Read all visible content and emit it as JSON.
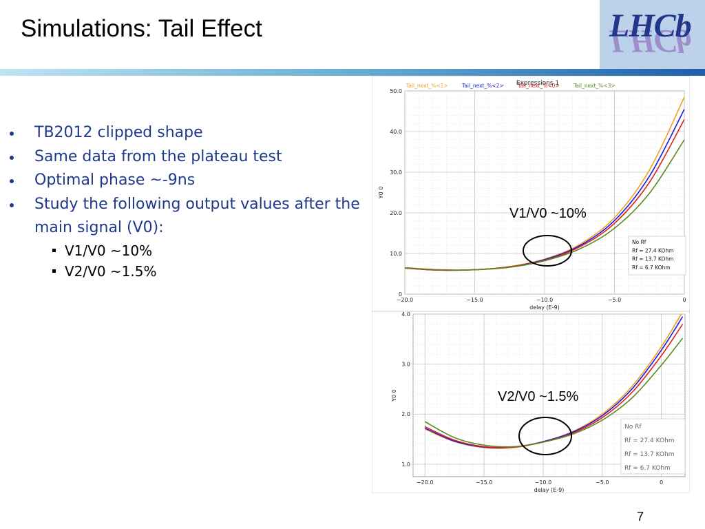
{
  "slide": {
    "title": "Simulations: Tail Effect",
    "logo_text": "LHCb",
    "page_number": "7"
  },
  "bullets": [
    {
      "text": "TB2012 clipped shape",
      "level": 1
    },
    {
      "text": "Same data from the plateau test",
      "level": 1
    },
    {
      "text": "Optimal phase ~-9ns",
      "level": 1
    },
    {
      "text": "Study the following output values after the main signal (V0):",
      "level": 1
    },
    {
      "text": "V1/V0 ~10%",
      "level": 2
    },
    {
      "text": "V2/V0 ~1.5%",
      "level": 2
    }
  ],
  "chart_data": [
    {
      "type": "line",
      "title": "Expressions 1",
      "xlabel": "delay (E-9)",
      "ylabel": "Y0 0",
      "xlim": [
        -20,
        0
      ],
      "ylim": [
        0,
        50
      ],
      "x_ticks": [
        "-20.0",
        "-15.0",
        "-10.0",
        "-5.0",
        "0"
      ],
      "y_ticks": [
        "0",
        "10.0",
        "20.0",
        "30.0",
        "40.0",
        "50.0"
      ],
      "grid": true,
      "legend_top": [
        {
          "label": "Tail_next_%<1>",
          "color": "#f0a020"
        },
        {
          "label": "Tail_next_%<2>",
          "color": "#1a1adf"
        },
        {
          "label": "Tail_next_%<0>",
          "color": "#e02020"
        },
        {
          "label": "Tail_next_%<3>",
          "color": "#5a8a20"
        }
      ],
      "legend_box": [
        "No Rf",
        "Rf = 27.4 KOhm",
        "Rf = 13.7 KOhm",
        "Rf = 6.7 KOhm"
      ],
      "annotation": "V1/V0 ~10%",
      "x": [
        -20,
        -17.5,
        -15,
        -12.5,
        -10,
        -7.5,
        -5,
        -2.5,
        0
      ],
      "series": [
        {
          "color": "#f0a020",
          "values": [
            6.4,
            5.9,
            6.0,
            6.8,
            8.6,
            12.2,
            18.8,
            30.5,
            48.5
          ]
        },
        {
          "color": "#1a1adf",
          "values": [
            6.4,
            5.9,
            6.0,
            6.7,
            8.5,
            11.9,
            18.1,
            29.0,
            45.5
          ]
        },
        {
          "color": "#e02020",
          "values": [
            6.4,
            5.9,
            6.0,
            6.7,
            8.3,
            11.6,
            17.4,
            27.5,
            43.0
          ]
        },
        {
          "color": "#5a8a20",
          "values": [
            6.5,
            6.0,
            6.0,
            6.6,
            8.2,
            11.1,
            16.2,
            24.8,
            38.0
          ]
        }
      ]
    },
    {
      "type": "line",
      "xlabel": "delay (E-9)",
      "ylabel": "Y0 0",
      "xlim": [
        -21,
        2
      ],
      "ylim": [
        0.75,
        4.0
      ],
      "x_ticks": [
        "-20.0",
        "-15.0",
        "-10.0",
        "-5.0",
        "0"
      ],
      "y_ticks": [
        "1.0",
        "2.0",
        "3.0",
        "4.0"
      ],
      "grid": true,
      "legend_box": [
        "No Rf",
        "Rf = 27.4 KOhm",
        "Rf = 13.7 KOhm",
        "Rf = 6.7 KOhm"
      ],
      "annotation": "V2/V0 ~1.5%",
      "x": [
        -20,
        -17.5,
        -15,
        -12.5,
        -10,
        -7.5,
        -5,
        -2.5,
        0,
        1.8
      ],
      "series": [
        {
          "color": "#f0a020",
          "values": [
            1.7,
            1.45,
            1.33,
            1.33,
            1.45,
            1.65,
            2.0,
            2.55,
            3.35,
            4.05
          ]
        },
        {
          "color": "#1a1adf",
          "values": [
            1.72,
            1.46,
            1.34,
            1.34,
            1.45,
            1.64,
            1.97,
            2.5,
            3.28,
            3.95
          ]
        },
        {
          "color": "#e02020",
          "values": [
            1.75,
            1.48,
            1.35,
            1.34,
            1.44,
            1.62,
            1.93,
            2.43,
            3.17,
            3.8
          ]
        },
        {
          "color": "#5a8a20",
          "values": [
            1.85,
            1.53,
            1.38,
            1.35,
            1.44,
            1.6,
            1.88,
            2.32,
            2.98,
            3.52
          ]
        }
      ]
    }
  ]
}
